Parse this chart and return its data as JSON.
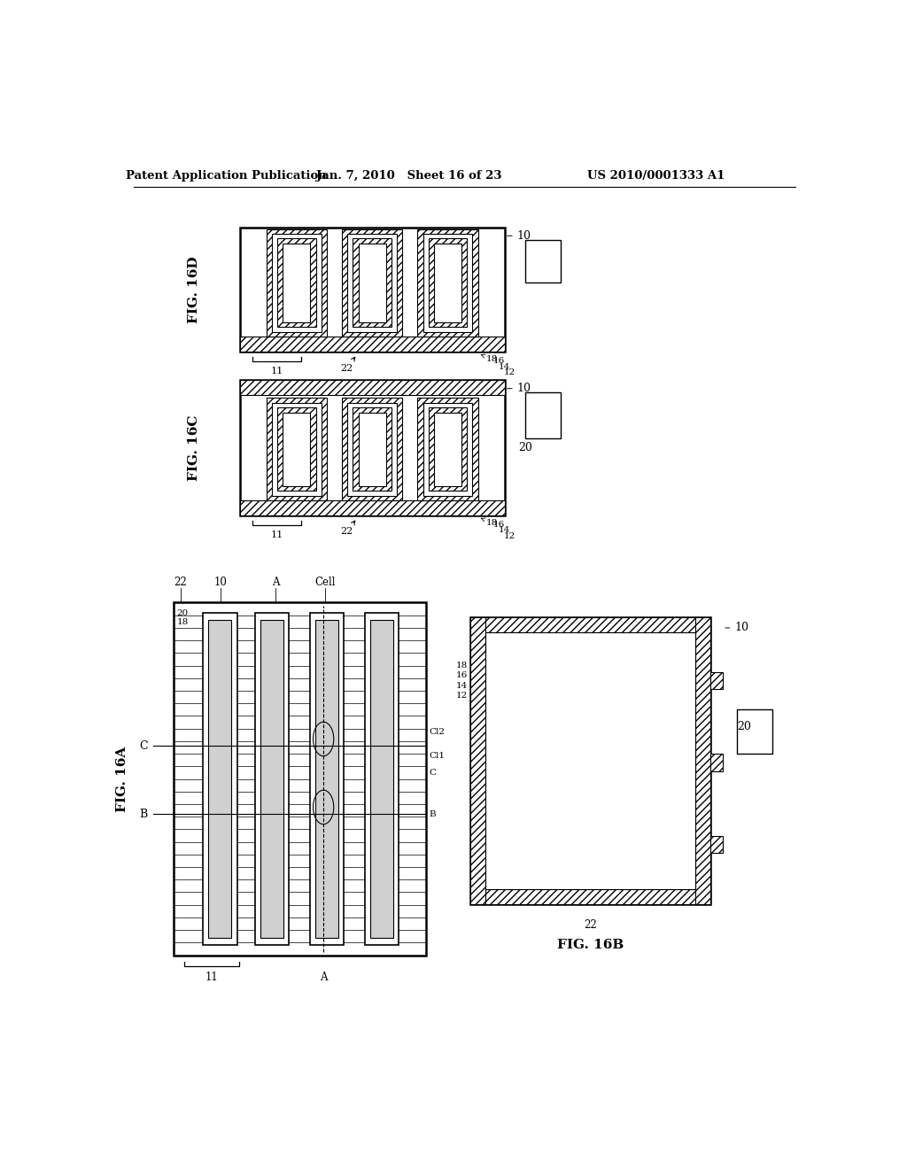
{
  "bg_color": "#ffffff",
  "title_left": "Patent Application Publication",
  "title_center": "Jan. 7, 2010   Sheet 16 of 23",
  "title_right": "US 2010/0001333 A1",
  "line_color": "#000000"
}
